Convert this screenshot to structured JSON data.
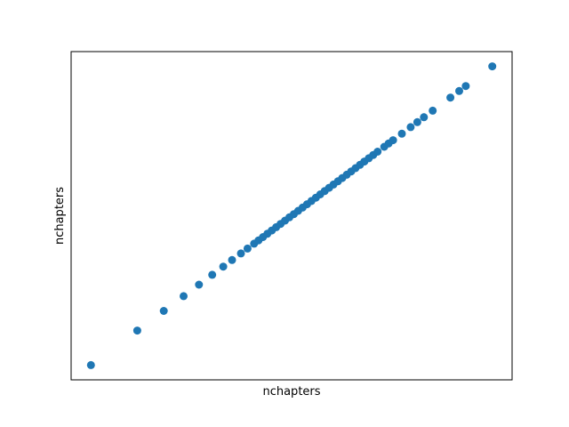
{
  "chart_data": {
    "type": "scatter",
    "xlabel": "nchapters",
    "ylabel": "nchapters",
    "xlim": [
      0,
      100
    ],
    "ylim": [
      0,
      100
    ],
    "grid": false,
    "ticks_shown": false,
    "marker_color": "#1f77b4",
    "series": [
      {
        "points": [
          [
            4.5,
            4.5
          ],
          [
            15,
            15
          ],
          [
            21,
            21
          ],
          [
            25.5,
            25.5
          ],
          [
            29,
            29
          ],
          [
            32,
            32
          ],
          [
            34.5,
            34.5
          ],
          [
            36.5,
            36.5
          ],
          [
            38.5,
            38.5
          ],
          [
            40,
            40
          ],
          [
            41.5,
            41.5
          ],
          [
            42.5,
            42.5
          ],
          [
            43.5,
            43.5
          ],
          [
            44.5,
            44.5
          ],
          [
            45.5,
            45.5
          ],
          [
            46.5,
            46.5
          ],
          [
            47.5,
            47.5
          ],
          [
            48.5,
            48.5
          ],
          [
            49.5,
            49.5
          ],
          [
            50.5,
            50.5
          ],
          [
            51.5,
            51.5
          ],
          [
            52.5,
            52.5
          ],
          [
            53.5,
            53.5
          ],
          [
            54.5,
            54.5
          ],
          [
            55.5,
            55.5
          ],
          [
            56.5,
            56.5
          ],
          [
            57.5,
            57.5
          ],
          [
            58.5,
            58.5
          ],
          [
            59.5,
            59.5
          ],
          [
            60.5,
            60.5
          ],
          [
            61.5,
            61.5
          ],
          [
            62.5,
            62.5
          ],
          [
            63.5,
            63.5
          ],
          [
            64.5,
            64.5
          ],
          [
            65.5,
            65.5
          ],
          [
            66.5,
            66.5
          ],
          [
            67.5,
            67.5
          ],
          [
            68.5,
            68.5
          ],
          [
            69.5,
            69.5
          ],
          [
            71,
            71
          ],
          [
            72,
            72
          ],
          [
            73,
            73
          ],
          [
            75,
            75
          ],
          [
            77,
            77
          ],
          [
            78.5,
            78.5
          ],
          [
            80,
            80
          ],
          [
            82,
            82
          ],
          [
            86,
            86
          ],
          [
            88,
            88
          ],
          [
            89.5,
            89.5
          ],
          [
            95.5,
            95.5
          ]
        ]
      }
    ]
  }
}
